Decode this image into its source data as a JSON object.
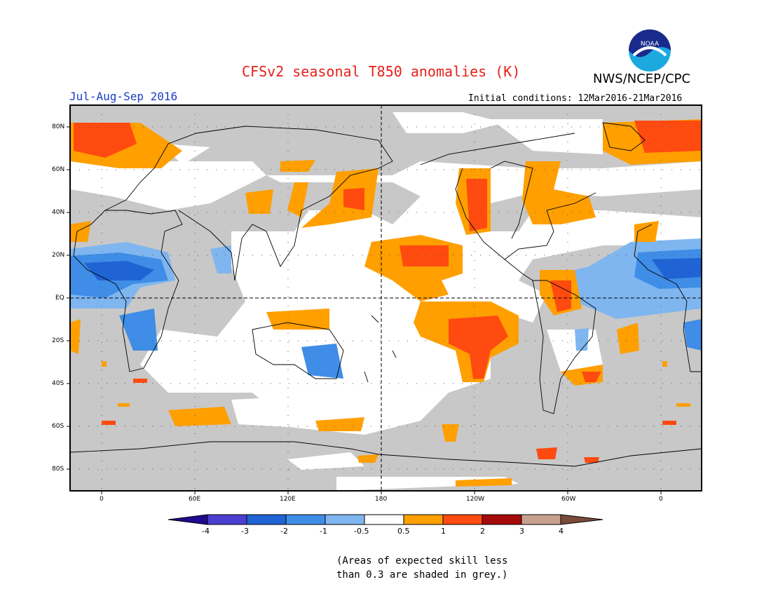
{
  "header": {
    "title": "CFSv2 seasonal T850 anomalies (K)",
    "agency": "NWS/NCEP/CPC",
    "logo_text": "NOAA",
    "season": "Jul-Aug-Sep 2016",
    "initial_conditions": "Initial conditions: 12Mar2016-21Mar2016"
  },
  "axes": {
    "lat_labels": [
      "80N",
      "60N",
      "40N",
      "20N",
      "EQ",
      "20S",
      "40S",
      "60S",
      "80S"
    ],
    "lon_labels": [
      "0",
      "60E",
      "120E",
      "180",
      "120W",
      "60W",
      "0"
    ]
  },
  "legend": {
    "labels": [
      "-4",
      "-3",
      "-2",
      "-1",
      "-0.5",
      "0.5",
      "1",
      "2",
      "3",
      "4"
    ],
    "colors": [
      "#1f0b8f",
      "#4a3fd0",
      "#1f63d4",
      "#3f8de6",
      "#7fb6f0",
      "#ffffff",
      "#ff9f00",
      "#ff4a10",
      "#a50a0a",
      "#c8a090",
      "#7a4a3a"
    ]
  },
  "notes": {
    "line1": "(Areas of expected skill less",
    "line2": "than 0.3 are shaded in grey.)"
  },
  "colors": {
    "skill_grey": "#c8c8c8",
    "title_red": "#e8201a",
    "season_blue": "#1a3cc8"
  }
}
